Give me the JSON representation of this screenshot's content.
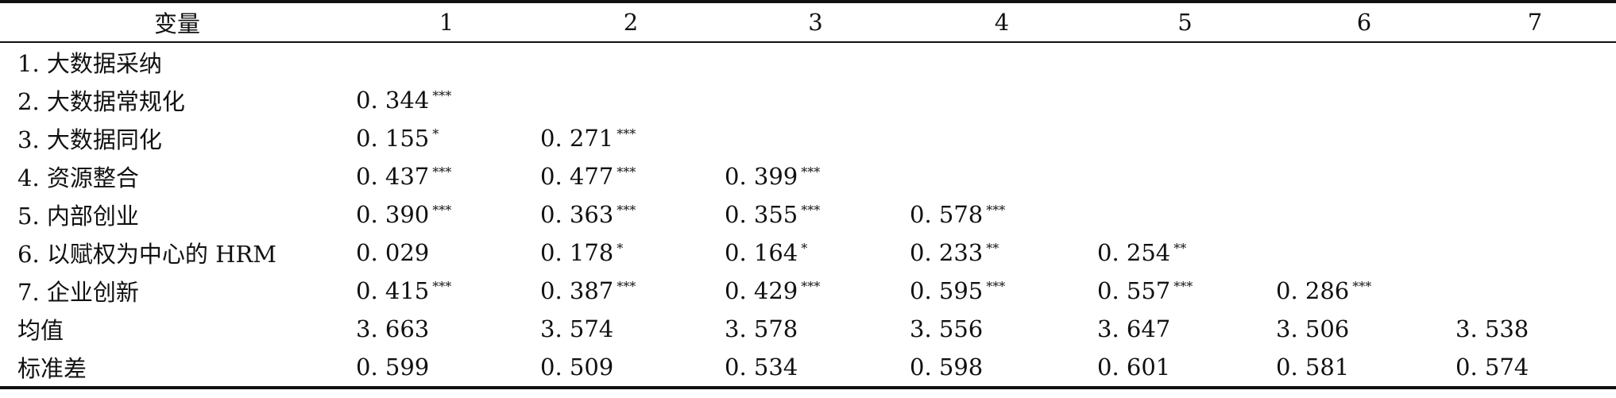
{
  "table": {
    "headers": [
      "变量",
      "1",
      "2",
      "3",
      "4",
      "5",
      "6",
      "7"
    ],
    "rows": [
      {
        "label": "1. 大数据采纳",
        "cells": [
          {
            "v": "",
            "s": ""
          },
          {
            "v": "",
            "s": ""
          },
          {
            "v": "",
            "s": ""
          },
          {
            "v": "",
            "s": ""
          },
          {
            "v": "",
            "s": ""
          },
          {
            "v": "",
            "s": ""
          },
          {
            "v": "",
            "s": ""
          }
        ]
      },
      {
        "label": "2. 大数据常规化",
        "cells": [
          {
            "v": "0. 344",
            "s": "***"
          },
          {
            "v": "",
            "s": ""
          },
          {
            "v": "",
            "s": ""
          },
          {
            "v": "",
            "s": ""
          },
          {
            "v": "",
            "s": ""
          },
          {
            "v": "",
            "s": ""
          },
          {
            "v": "",
            "s": ""
          }
        ]
      },
      {
        "label": "3. 大数据同化",
        "cells": [
          {
            "v": "0. 155",
            "s": "*"
          },
          {
            "v": "0. 271",
            "s": "***"
          },
          {
            "v": "",
            "s": ""
          },
          {
            "v": "",
            "s": ""
          },
          {
            "v": "",
            "s": ""
          },
          {
            "v": "",
            "s": ""
          },
          {
            "v": "",
            "s": ""
          }
        ]
      },
      {
        "label": "4. 资源整合",
        "cells": [
          {
            "v": "0. 437",
            "s": "***"
          },
          {
            "v": "0. 477",
            "s": "***"
          },
          {
            "v": "0. 399",
            "s": "***"
          },
          {
            "v": "",
            "s": ""
          },
          {
            "v": "",
            "s": ""
          },
          {
            "v": "",
            "s": ""
          },
          {
            "v": "",
            "s": ""
          }
        ]
      },
      {
        "label": "5. 内部创业",
        "cells": [
          {
            "v": "0. 390",
            "s": "***"
          },
          {
            "v": "0. 363",
            "s": "***"
          },
          {
            "v": "0. 355",
            "s": "***"
          },
          {
            "v": "0. 578",
            "s": "***"
          },
          {
            "v": "",
            "s": ""
          },
          {
            "v": "",
            "s": ""
          },
          {
            "v": "",
            "s": ""
          }
        ]
      },
      {
        "label": "6. 以赋权为中心的 HRM",
        "cells": [
          {
            "v": "0. 029",
            "s": ""
          },
          {
            "v": "0. 178",
            "s": "*"
          },
          {
            "v": "0. 164",
            "s": "*"
          },
          {
            "v": "0. 233",
            "s": "**"
          },
          {
            "v": "0. 254",
            "s": "**"
          },
          {
            "v": "",
            "s": ""
          },
          {
            "v": "",
            "s": ""
          }
        ]
      },
      {
        "label": "7. 企业创新",
        "cells": [
          {
            "v": "0. 415",
            "s": "***"
          },
          {
            "v": "0. 387",
            "s": "***"
          },
          {
            "v": "0. 429",
            "s": "***"
          },
          {
            "v": "0. 595",
            "s": "***"
          },
          {
            "v": "0. 557",
            "s": "***"
          },
          {
            "v": "0. 286",
            "s": "***"
          },
          {
            "v": "",
            "s": ""
          }
        ]
      },
      {
        "label": "均值",
        "cells": [
          {
            "v": "3. 663",
            "s": ""
          },
          {
            "v": "3. 574",
            "s": ""
          },
          {
            "v": "3. 578",
            "s": ""
          },
          {
            "v": "3. 556",
            "s": ""
          },
          {
            "v": "3. 647",
            "s": ""
          },
          {
            "v": "3. 506",
            "s": ""
          },
          {
            "v": "3. 538",
            "s": ""
          }
        ]
      },
      {
        "label": "标准差",
        "cells": [
          {
            "v": "0. 599",
            "s": ""
          },
          {
            "v": "0. 509",
            "s": ""
          },
          {
            "v": "0. 534",
            "s": ""
          },
          {
            "v": "0. 598",
            "s": ""
          },
          {
            "v": "0. 601",
            "s": ""
          },
          {
            "v": "0. 581",
            "s": ""
          },
          {
            "v": "0. 574",
            "s": ""
          }
        ]
      }
    ]
  }
}
